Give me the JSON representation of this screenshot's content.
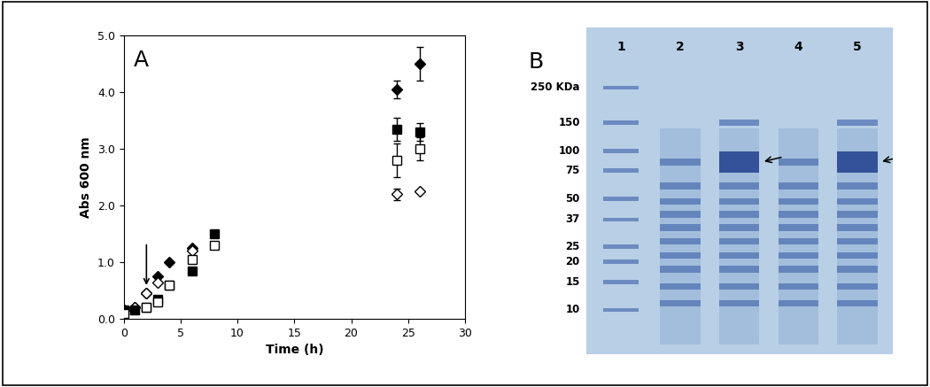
{
  "chart_data": {
    "type": "scatter",
    "panel": "A",
    "x_label": "Time (h)",
    "y_label": "Abs 600 nm",
    "xlim": [
      0,
      30
    ],
    "xticks": [
      0,
      5,
      10,
      15,
      20,
      25,
      30
    ],
    "ylim": [
      0,
      5
    ],
    "yticks": [
      {
        "value": 0,
        "label": "0.0"
      },
      {
        "value": 1,
        "label": "1.0"
      },
      {
        "value": 2,
        "label": "2.0"
      },
      {
        "value": 3,
        "label": "3.0"
      },
      {
        "value": 4,
        "label": "4.0"
      },
      {
        "value": 5,
        "label": "5.0"
      }
    ],
    "grid": false,
    "arrow": {
      "x": 2,
      "y": 0.55
    },
    "series": [
      {
        "marker": "diamond",
        "color": "#000000",
        "x": [
          0,
          1,
          2,
          3,
          4,
          6,
          24,
          26
        ],
        "values": [
          0.15,
          0.2,
          0.45,
          0.75,
          1.0,
          1.25,
          4.05,
          4.5
        ],
        "errors": [
          null,
          null,
          null,
          null,
          null,
          null,
          0.15,
          0.3
        ]
      },
      {
        "marker": "diamond",
        "color": "#ffffff",
        "x": [
          0,
          1,
          2,
          3,
          6,
          24,
          26
        ],
        "values": [
          0.15,
          0.2,
          0.45,
          0.65,
          1.2,
          2.2,
          2.25
        ],
        "errors": [
          null,
          null,
          null,
          null,
          null,
          0.1,
          null
        ]
      },
      {
        "marker": "square",
        "color": "#000000",
        "x": [
          0,
          1,
          2,
          3,
          4,
          6,
          8,
          24,
          26
        ],
        "values": [
          0.15,
          0.15,
          0.2,
          0.35,
          0.6,
          0.85,
          1.5,
          3.35,
          3.3
        ],
        "errors": [
          null,
          null,
          null,
          null,
          null,
          null,
          null,
          0.2,
          0.15
        ]
      },
      {
        "marker": "square",
        "color": "#ffffff",
        "x": [
          0,
          2,
          3,
          4,
          6,
          8,
          24,
          26
        ],
        "values": [
          0.1,
          0.2,
          0.3,
          0.6,
          1.05,
          1.3,
          2.8,
          3.0
        ],
        "errors": [
          null,
          null,
          null,
          null,
          null,
          null,
          0.3,
          0.2
        ]
      }
    ]
  },
  "gel": {
    "panel": "B",
    "markers": [
      {
        "value": 250,
        "label": "250 KDa"
      },
      150,
      100,
      75,
      50,
      37,
      25,
      20,
      15,
      10
    ],
    "arrow_kda": 85,
    "lanes": [
      {
        "label": "1",
        "bands": [
          250,
          150,
          100,
          75,
          50,
          37,
          25,
          20,
          15,
          10
        ]
      },
      {
        "label": "2",
        "bands": [
          85,
          60,
          48,
          40,
          33,
          27,
          22,
          18,
          14,
          11
        ]
      },
      {
        "label": "3",
        "bands": [
          150,
          85,
          60,
          48,
          40,
          33,
          27,
          22,
          18,
          14,
          11
        ],
        "arrow": true
      },
      {
        "label": "4",
        "bands": [
          85,
          60,
          48,
          40,
          33,
          27,
          22,
          18,
          14,
          11
        ]
      },
      {
        "label": "5",
        "bands": [
          150,
          85,
          60,
          48,
          40,
          33,
          27,
          22,
          18,
          14,
          11
        ],
        "arrow": true
      }
    ]
  }
}
